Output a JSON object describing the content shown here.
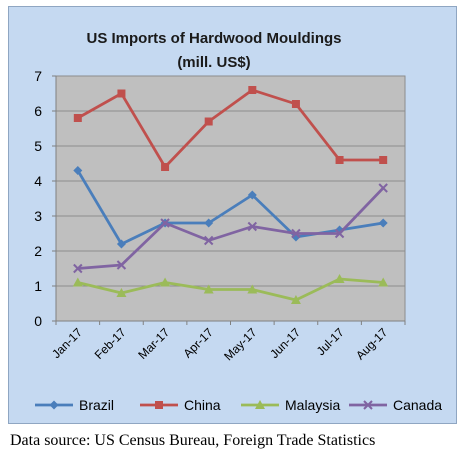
{
  "chart_data": {
    "type": "line",
    "title": "US Imports of Hardwood Mouldings",
    "subtitle": "(mill. US$)",
    "categories": [
      "Jan-17",
      "Feb-17",
      "Mar-17",
      "Apr-17",
      "May-17",
      "Jun-17",
      "Jul-17",
      "Aug-17"
    ],
    "ylim": [
      0,
      7
    ],
    "yticks": [
      "0",
      "1",
      "2",
      "3",
      "4",
      "5",
      "6",
      "7"
    ],
    "grid": true,
    "legend_position": "bottom",
    "series": [
      {
        "name": "Brazil",
        "color": "#4a7ebb",
        "marker": "diamond",
        "values": [
          4.3,
          2.2,
          2.8,
          2.8,
          3.6,
          2.4,
          2.6,
          2.8
        ]
      },
      {
        "name": "China",
        "color": "#c0504d",
        "marker": "square",
        "values": [
          5.8,
          6.5,
          4.4,
          5.7,
          6.6,
          6.2,
          4.6,
          4.6
        ]
      },
      {
        "name": "Malaysia",
        "color": "#9bbb59",
        "marker": "triangle",
        "values": [
          1.1,
          0.8,
          1.1,
          0.9,
          0.9,
          0.6,
          1.2,
          1.1
        ]
      },
      {
        "name": "Canada",
        "color": "#8064a2",
        "marker": "x",
        "values": [
          1.5,
          1.6,
          2.8,
          2.3,
          2.7,
          2.5,
          2.5,
          3.8
        ]
      }
    ]
  },
  "source_note": "Data source:  US Census Bureau, Foreign Trade Statistics"
}
